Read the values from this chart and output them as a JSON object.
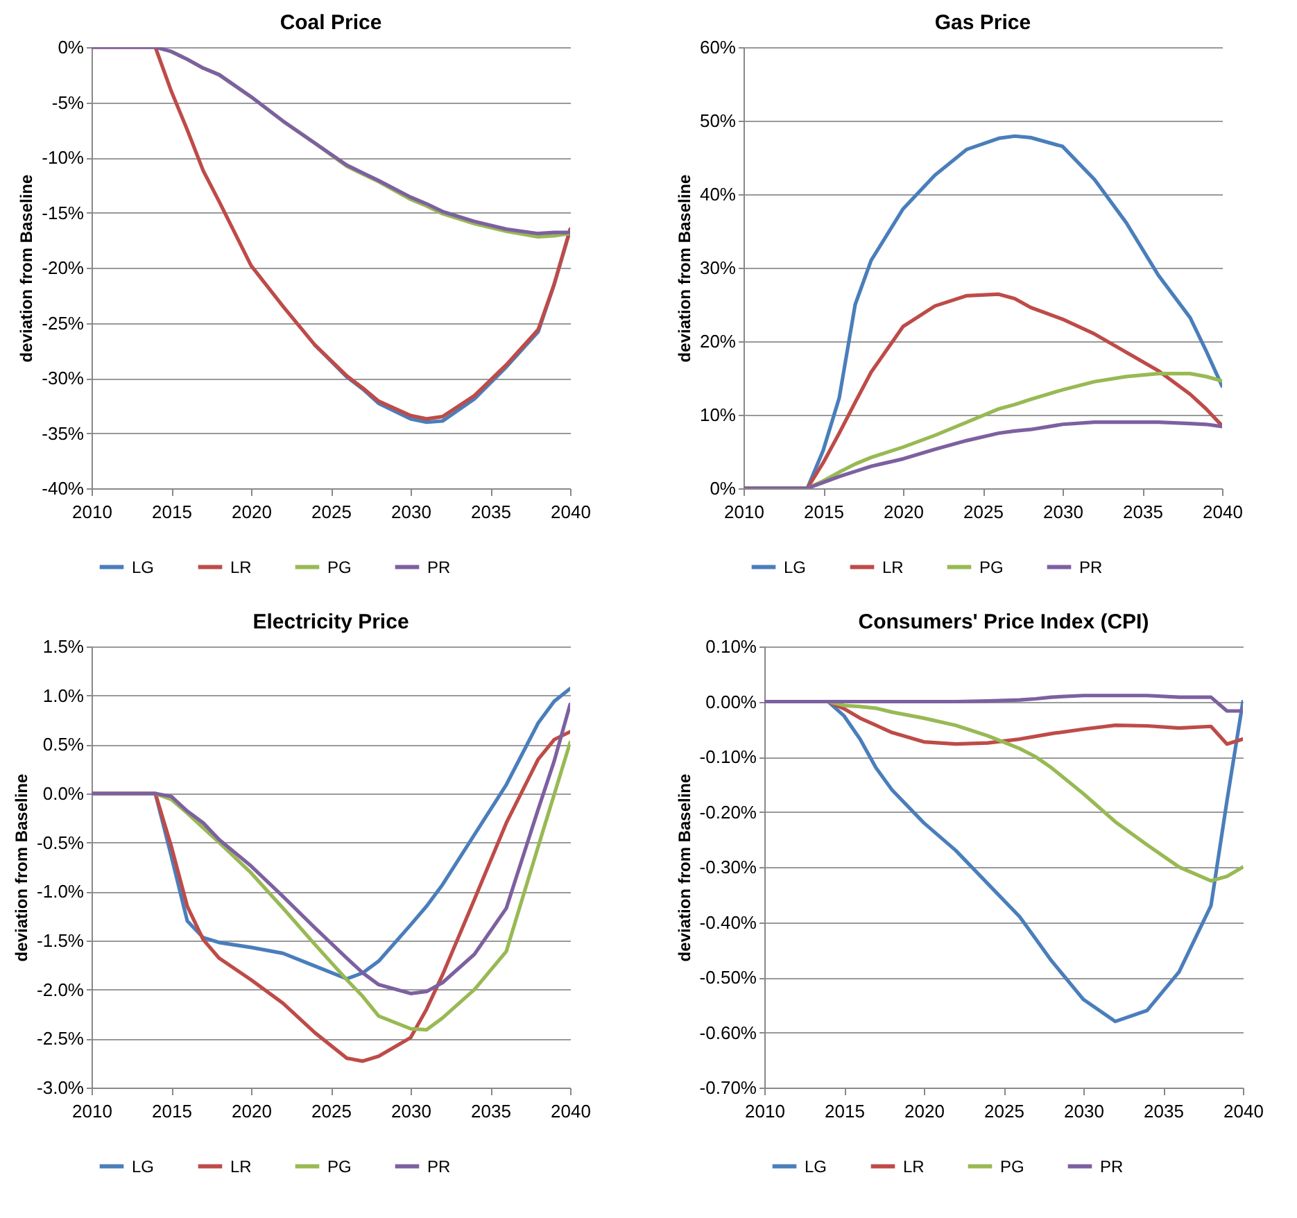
{
  "chart_data": [
    {
      "type": "line",
      "title": "Coal Price",
      "ylabel": "deviation from Baseline",
      "xlim": [
        2010,
        2040
      ],
      "xticks": [
        2010,
        2015,
        2020,
        2025,
        2030,
        2035,
        2040
      ],
      "ylim": [
        -40,
        0
      ],
      "yticks": [
        {
          "value": -40,
          "label": "-40%"
        },
        {
          "value": -35,
          "label": "-35%"
        },
        {
          "value": -30,
          "label": "-30%"
        },
        {
          "value": -25,
          "label": "-25%"
        },
        {
          "value": -20,
          "label": "-20%"
        },
        {
          "value": -15,
          "label": "-15%"
        },
        {
          "value": -10,
          "label": "-10%"
        },
        {
          "value": -5,
          "label": "-5%"
        },
        {
          "value": 0,
          "label": "0%"
        }
      ],
      "grid": "y",
      "legend": "bottom",
      "x": [
        2010,
        2014,
        2015,
        2016,
        2017,
        2018,
        2020,
        2022,
        2024,
        2026,
        2027,
        2028,
        2030,
        2031,
        2032,
        2034,
        2036,
        2038,
        2039,
        2040
      ],
      "series": [
        {
          "name": "LG",
          "color": "#4a7ebb",
          "values": [
            null,
            null,
            null,
            null,
            null,
            null,
            null,
            null,
            -27,
            -29.9,
            -31,
            -32.3,
            -33.7,
            -34,
            -33.9,
            -31.9,
            -29,
            -25.8,
            -21.5,
            -16.6
          ]
        },
        {
          "name": "LR",
          "color": "#be4b48",
          "values": [
            0,
            0,
            -4,
            -7.5,
            -11.2,
            -14,
            -19.8,
            -23.5,
            -27,
            -29.8,
            -30.9,
            -32.1,
            -33.4,
            -33.7,
            -33.5,
            -31.6,
            -28.8,
            -25.6,
            -21.5,
            -16.5
          ]
        },
        {
          "name": "PG",
          "color": "#98b954",
          "values": [
            null,
            null,
            -0.4,
            -1.1,
            -1.9,
            -2.5,
            -4.5,
            -6.7,
            -8.7,
            -10.8,
            -11.5,
            -12.2,
            -13.8,
            -14.4,
            -15.1,
            -16,
            -16.7,
            -17.2,
            -17.1,
            -16.9
          ]
        },
        {
          "name": "PR",
          "color": "#7d60a0",
          "values": [
            0,
            0,
            -0.4,
            -1.1,
            -1.9,
            -2.5,
            -4.5,
            -6.7,
            -8.7,
            -10.7,
            -11.4,
            -12.1,
            -13.6,
            -14.2,
            -14.9,
            -15.8,
            -16.5,
            -16.9,
            -16.8,
            -16.8
          ]
        }
      ]
    },
    {
      "type": "line",
      "title": "Gas Price",
      "ylabel": "deviation from Baseline",
      "xlim": [
        2010,
        2040
      ],
      "xticks": [
        2010,
        2015,
        2020,
        2025,
        2030,
        2035,
        2040
      ],
      "ylim": [
        0,
        60
      ],
      "yticks": [
        {
          "value": 0,
          "label": "0%"
        },
        {
          "value": 10,
          "label": "10%"
        },
        {
          "value": 20,
          "label": "20%"
        },
        {
          "value": 30,
          "label": "30%"
        },
        {
          "value": 40,
          "label": "40%"
        },
        {
          "value": 50,
          "label": "50%"
        },
        {
          "value": 60,
          "label": "60%"
        }
      ],
      "grid": "y",
      "legend": "bottom",
      "x": [
        2010,
        2014,
        2015,
        2016,
        2017,
        2018,
        2020,
        2022,
        2024,
        2026,
        2027,
        2028,
        2030,
        2032,
        2034,
        2036,
        2038,
        2039,
        2040
      ],
      "series": [
        {
          "name": "LG",
          "color": "#4a7ebb",
          "values": [
            0,
            0,
            5.2,
            12.3,
            25,
            31,
            38,
            42.6,
            46.1,
            47.6,
            47.9,
            47.7,
            46.5,
            42,
            36.1,
            29,
            23.2,
            18.7,
            13.9
          ]
        },
        {
          "name": "LR",
          "color": "#be4b48",
          "values": [
            0,
            0,
            3.5,
            7.5,
            11.7,
            15.8,
            22,
            24.8,
            26.2,
            26.4,
            25.8,
            24.6,
            23,
            21,
            18.5,
            16,
            12.8,
            10.8,
            8.5
          ]
        },
        {
          "name": "PG",
          "color": "#98b954",
          "values": [
            0,
            0,
            1,
            2.2,
            3.3,
            4.2,
            5.6,
            7.2,
            9,
            10.8,
            11.4,
            12.1,
            13.4,
            14.5,
            15.2,
            15.6,
            15.6,
            15.2,
            14.6
          ]
        },
        {
          "name": "PR",
          "color": "#7d60a0",
          "values": [
            0,
            0,
            0.8,
            1.6,
            2.3,
            3,
            4,
            5.3,
            6.5,
            7.5,
            7.8,
            8,
            8.7,
            9,
            9,
            9,
            8.8,
            8.7,
            8.4
          ]
        }
      ]
    },
    {
      "type": "line",
      "title": "Electricity Price",
      "ylabel": "deviation from Baseline",
      "xlim": [
        2010,
        2040
      ],
      "xticks": [
        2010,
        2015,
        2020,
        2025,
        2030,
        2035,
        2040
      ],
      "ylim": [
        -3,
        1.5
      ],
      "yticks": [
        {
          "value": -3,
          "label": "-3.0%"
        },
        {
          "value": -2.5,
          "label": "-2.5%"
        },
        {
          "value": -2,
          "label": "-2.0%"
        },
        {
          "value": -1.5,
          "label": "-1.5%"
        },
        {
          "value": -1,
          "label": "-1.0%"
        },
        {
          "value": -0.5,
          "label": "-0.5%"
        },
        {
          "value": 0,
          "label": "0.0%"
        },
        {
          "value": 0.5,
          "label": "0.5%"
        },
        {
          "value": 1,
          "label": "1.0%"
        },
        {
          "value": 1.5,
          "label": "1.5%"
        }
      ],
      "grid": "y",
      "legend": "bottom",
      "x": [
        2010,
        2014,
        2015,
        2016,
        2017,
        2018,
        2020,
        2022,
        2024,
        2026,
        2027,
        2028,
        2030,
        2031,
        2032,
        2034,
        2036,
        2038,
        2039,
        2040
      ],
      "series": [
        {
          "name": "LG",
          "color": "#4a7ebb",
          "values": [
            0,
            0,
            -0.64,
            -1.3,
            -1.47,
            -1.52,
            -1.57,
            -1.63,
            -1.76,
            -1.89,
            -1.83,
            -1.71,
            -1.34,
            -1.15,
            -0.93,
            -0.42,
            0.09,
            0.72,
            0.94,
            1.07
          ]
        },
        {
          "name": "LR",
          "color": "#be4b48",
          "values": [
            0,
            0,
            -0.54,
            -1.15,
            -1.49,
            -1.68,
            -1.9,
            -2.14,
            -2.44,
            -2.7,
            -2.73,
            -2.68,
            -2.49,
            -2.2,
            -1.85,
            -1.08,
            -0.3,
            0.35,
            0.55,
            0.63
          ]
        },
        {
          "name": "PG",
          "color": "#98b954",
          "values": [
            0,
            0,
            -0.06,
            -0.2,
            -0.35,
            -0.5,
            -0.81,
            -1.17,
            -1.54,
            -1.9,
            -2.07,
            -2.27,
            -2.4,
            -2.41,
            -2.29,
            -2,
            -1.61,
            -0.54,
            -0.01,
            0.52
          ]
        },
        {
          "name": "PR",
          "color": "#7d60a0",
          "values": [
            0,
            0,
            -0.03,
            -0.18,
            -0.3,
            -0.47,
            -0.74,
            -1.05,
            -1.37,
            -1.68,
            -1.83,
            -1.95,
            -2.04,
            -2.02,
            -1.93,
            -1.64,
            -1.17,
            -0.16,
            0.33,
            0.91
          ]
        }
      ]
    },
    {
      "type": "line",
      "title": "Consumers' Price Index (CPI)",
      "ylabel": "deviation from Baseline",
      "xlim": [
        2010,
        2040
      ],
      "xticks": [
        2010,
        2015,
        2020,
        2025,
        2030,
        2035,
        2040
      ],
      "ylim": [
        -0.7,
        0.1
      ],
      "yticks": [
        {
          "value": -0.7,
          "label": "-0.70%"
        },
        {
          "value": -0.6,
          "label": "-0.60%"
        },
        {
          "value": -0.5,
          "label": "-0.50%"
        },
        {
          "value": -0.4,
          "label": "-0.40%"
        },
        {
          "value": -0.3,
          "label": "-0.30%"
        },
        {
          "value": -0.2,
          "label": "-0.20%"
        },
        {
          "value": -0.1,
          "label": "-0.10%"
        },
        {
          "value": 0,
          "label": "0.00%"
        },
        {
          "value": 0.1,
          "label": "0.10%"
        }
      ],
      "grid": "y",
      "legend": "bottom",
      "x": [
        2010,
        2014,
        2015,
        2016,
        2017,
        2018,
        2020,
        2022,
        2024,
        2026,
        2027,
        2028,
        2030,
        2032,
        2034,
        2036,
        2038,
        2039,
        2040
      ],
      "series": [
        {
          "name": "LG",
          "color": "#4a7ebb",
          "values": [
            0,
            0,
            -0.026,
            -0.068,
            -0.12,
            -0.16,
            -0.22,
            -0.27,
            -0.33,
            -0.39,
            -0.43,
            -0.47,
            -0.54,
            -0.58,
            -0.56,
            -0.49,
            -0.37,
            -0.18,
            0
          ]
        },
        {
          "name": "LR",
          "color": "#be4b48",
          "values": [
            0,
            0,
            -0.013,
            -0.03,
            -0.043,
            -0.056,
            -0.073,
            -0.077,
            -0.075,
            -0.068,
            -0.063,
            -0.058,
            -0.05,
            -0.043,
            -0.044,
            -0.048,
            -0.045,
            -0.077,
            -0.068
          ]
        },
        {
          "name": "PG",
          "color": "#98b954",
          "values": [
            0,
            0,
            -0.007,
            -0.009,
            -0.012,
            -0.019,
            -0.03,
            -0.043,
            -0.062,
            -0.085,
            -0.1,
            -0.12,
            -0.167,
            -0.218,
            -0.26,
            -0.3,
            -0.325,
            -0.317,
            -0.3
          ]
        },
        {
          "name": "PR",
          "color": "#7d60a0",
          "values": [
            0,
            0,
            0,
            0,
            0,
            0,
            0,
            0,
            0.001,
            0.003,
            0.005,
            0.008,
            0.011,
            0.011,
            0.011,
            0.008,
            0.008,
            -0.017,
            -0.017
          ]
        }
      ]
    }
  ]
}
